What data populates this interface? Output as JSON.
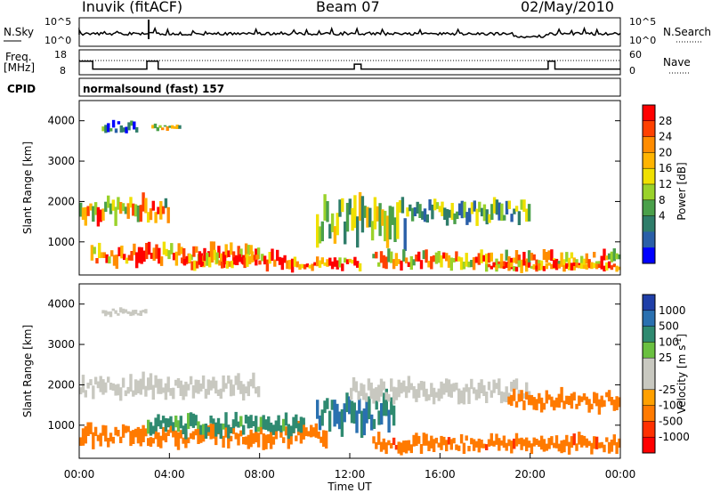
{
  "header": {
    "station": "Inuvik (fitACF)",
    "beam": "Beam 07",
    "date": "02/May/2010"
  },
  "strip1": {
    "left_label": "N.Sky",
    "right_label": "N.Search",
    "left_ticks": [
      "10^5",
      "10^0"
    ],
    "right_ticks": [
      "10^5",
      "10^0"
    ]
  },
  "strip2": {
    "left_label_1": "Freq.",
    "left_label_2": "[MHz]",
    "right_label": "Nave",
    "left_ticks": [
      "18",
      "8"
    ],
    "right_ticks": [
      "60",
      "0"
    ]
  },
  "cpid": {
    "label": "CPID",
    "text": "normalsound (fast) 157"
  },
  "power_colorbar": {
    "label": "Power [dB]",
    "ticks": [
      "28",
      "24",
      "20",
      "16",
      "12",
      "8",
      "4"
    ],
    "colors": [
      "#ff0000",
      "#ff4000",
      "#ff8c00",
      "#ffb400",
      "#f0e000",
      "#9ad22a",
      "#4aa04a",
      "#2f7d6a",
      "#2a5fa8",
      "#0000ff"
    ]
  },
  "velocity_colorbar": {
    "label": "Velocity [m s",
    "label_sup": "-1",
    "label_end": "]",
    "ticks": [
      "1000",
      "500",
      "100",
      "25",
      "-25",
      "-100",
      "-500",
      "-1000"
    ],
    "colors": [
      "#1f3fa8",
      "#2a70b0",
      "#2f8a70",
      "#6ac040",
      "#c8c8c0",
      "#c8c8c0",
      "#ffa000",
      "#ff7a00",
      "#ff3000",
      "#ff0000"
    ]
  },
  "chart_data": [
    {
      "type": "heatmap",
      "name": "power",
      "ylabel": "Slant Range [km]",
      "yticks": [
        "1000",
        "2000",
        "3000",
        "4000"
      ],
      "ylim": [
        180,
        4500
      ],
      "xlim": [
        "00:00",
        "24:00"
      ],
      "blobs": [
        {
          "t0": 0.0,
          "t1": 4.0,
          "r0": 1300,
          "r1": 2300,
          "v": 20
        },
        {
          "t0": 0.5,
          "t1": 8.0,
          "r0": 250,
          "r1": 1100,
          "v": 26
        },
        {
          "t0": 4.5,
          "t1": 9.5,
          "r0": 200,
          "r1": 900,
          "v": 28
        },
        {
          "t0": 1.0,
          "t1": 2.6,
          "r0": 3600,
          "r1": 4100,
          "v": 8
        },
        {
          "t0": 3.2,
          "t1": 4.5,
          "r0": 3700,
          "r1": 3950,
          "v": 16
        },
        {
          "t0": 9.5,
          "t1": 12.5,
          "r0": 200,
          "r1": 700,
          "v": 27
        },
        {
          "t0": 10.5,
          "t1": 14.5,
          "r0": 600,
          "r1": 2500,
          "v": 14
        },
        {
          "t0": 14.5,
          "t1": 20.0,
          "r0": 1300,
          "r1": 2200,
          "v": 12
        },
        {
          "t0": 13.0,
          "t1": 24.0,
          "r0": 200,
          "r1": 900,
          "v": 22
        },
        {
          "t0": 18.0,
          "t1": 24.0,
          "r0": 200,
          "r1": 600,
          "v": 26
        }
      ]
    },
    {
      "type": "heatmap",
      "name": "velocity",
      "xlabel": "Time UT",
      "ylabel": "Slant Range [km]",
      "xticks": [
        "00:00",
        "04:00",
        "08:00",
        "12:00",
        "16:00",
        "20:00",
        "00:00"
      ],
      "yticks": [
        "1000",
        "2000",
        "3000",
        "4000"
      ],
      "ylim": [
        180,
        4500
      ],
      "xlim": [
        "00:00",
        "24:00"
      ],
      "blobs": [
        {
          "t0": 0.0,
          "t1": 8.0,
          "r0": 1500,
          "r1": 2400,
          "v": 0
        },
        {
          "t0": 0.0,
          "t1": 11.0,
          "r0": 300,
          "r1": 1200,
          "v": -300
        },
        {
          "t0": 3.0,
          "t1": 10.0,
          "r0": 600,
          "r1": 1400,
          "v": 80
        },
        {
          "t0": 1.0,
          "t1": 3.0,
          "r0": 3650,
          "r1": 3950,
          "v": 0
        },
        {
          "t0": 10.5,
          "t1": 14.0,
          "r0": 600,
          "r1": 2000,
          "v": 300
        },
        {
          "t0": 12.0,
          "t1": 20.0,
          "r0": 1400,
          "r1": 2300,
          "v": 0
        },
        {
          "t0": 13.0,
          "t1": 24.0,
          "r0": 200,
          "r1": 900,
          "v": -400
        },
        {
          "t0": 19.0,
          "t1": 24.0,
          "r0": 1200,
          "r1": 2000,
          "v": -200
        }
      ]
    }
  ]
}
